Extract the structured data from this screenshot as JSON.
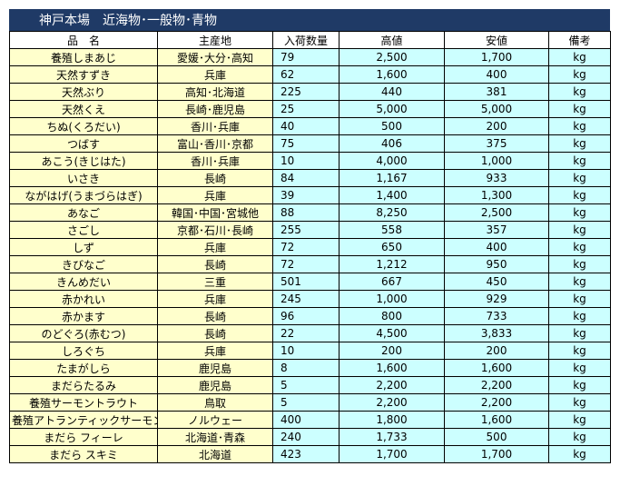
{
  "title": "神戸本場　近海物･一般物･青物",
  "headers": [
    "品　名",
    "主産地",
    "入荷数量",
    "高値",
    "安値",
    "備考"
  ],
  "rows": [
    [
      "養殖しまあじ",
      "愛媛･大分･高知",
      "79",
      "2,500",
      "1,700",
      "kg"
    ],
    [
      "天然すずき",
      "兵庫",
      "62",
      "1,600",
      "400",
      "kg"
    ],
    [
      "天然ぶり",
      "高知･北海道",
      "225",
      "440",
      "381",
      "kg"
    ],
    [
      "天然くえ",
      "長崎･鹿児島",
      "25",
      "5,000",
      "5,000",
      "kg"
    ],
    [
      "ちぬ(くろだい)",
      "香川･兵庫",
      "40",
      "500",
      "200",
      "kg"
    ],
    [
      "つばす",
      "富山･香川･京都",
      "75",
      "406",
      "375",
      "kg"
    ],
    [
      "あこう(きじはた)",
      "香川･兵庫",
      "10",
      "4,000",
      "1,000",
      "kg"
    ],
    [
      "いさき",
      "長崎",
      "84",
      "1,167",
      "933",
      "kg"
    ],
    [
      "ながはげ(うまづらはぎ)",
      "兵庫",
      "39",
      "1,400",
      "1,300",
      "kg"
    ],
    [
      "あなご",
      "韓国･中国･宮城他",
      "88",
      "8,250",
      "2,500",
      "kg"
    ],
    [
      "さごし",
      "京都･石川･長崎",
      "255",
      "558",
      "357",
      "kg"
    ],
    [
      "しず",
      "兵庫",
      "72",
      "650",
      "400",
      "kg"
    ],
    [
      "きびなご",
      "長崎",
      "72",
      "1,212",
      "950",
      "kg"
    ],
    [
      "きんめだい",
      "三重",
      "501",
      "667",
      "450",
      "kg"
    ],
    [
      "赤かれい",
      "兵庫",
      "245",
      "1,000",
      "929",
      "kg"
    ],
    [
      "赤かます",
      "長崎",
      "96",
      "800",
      "733",
      "kg"
    ],
    [
      "のどぐろ(赤むつ)",
      "長崎",
      "22",
      "4,500",
      "3,833",
      "kg"
    ],
    [
      "しろぐち",
      "兵庫",
      "10",
      "200",
      "200",
      "kg"
    ],
    [
      "たまがしら",
      "鹿児島",
      "8",
      "1,600",
      "1,600",
      "kg"
    ],
    [
      "まだらたるみ",
      "鹿児島",
      "5",
      "2,200",
      "2,200",
      "kg"
    ],
    [
      "養殖サーモントラウト",
      "鳥取",
      "5",
      "2,200",
      "2,200",
      "kg"
    ],
    [
      "養殖アトランティックサーモン",
      "ノルウェー",
      "400",
      "1,800",
      "1,600",
      "kg"
    ],
    [
      "まだら フィーレ",
      "北海道･青森",
      "240",
      "1,733",
      "500",
      "kg"
    ],
    [
      "まだら スキミ",
      "北海道",
      "423",
      "1,700",
      "1,700",
      "kg"
    ]
  ]
}
